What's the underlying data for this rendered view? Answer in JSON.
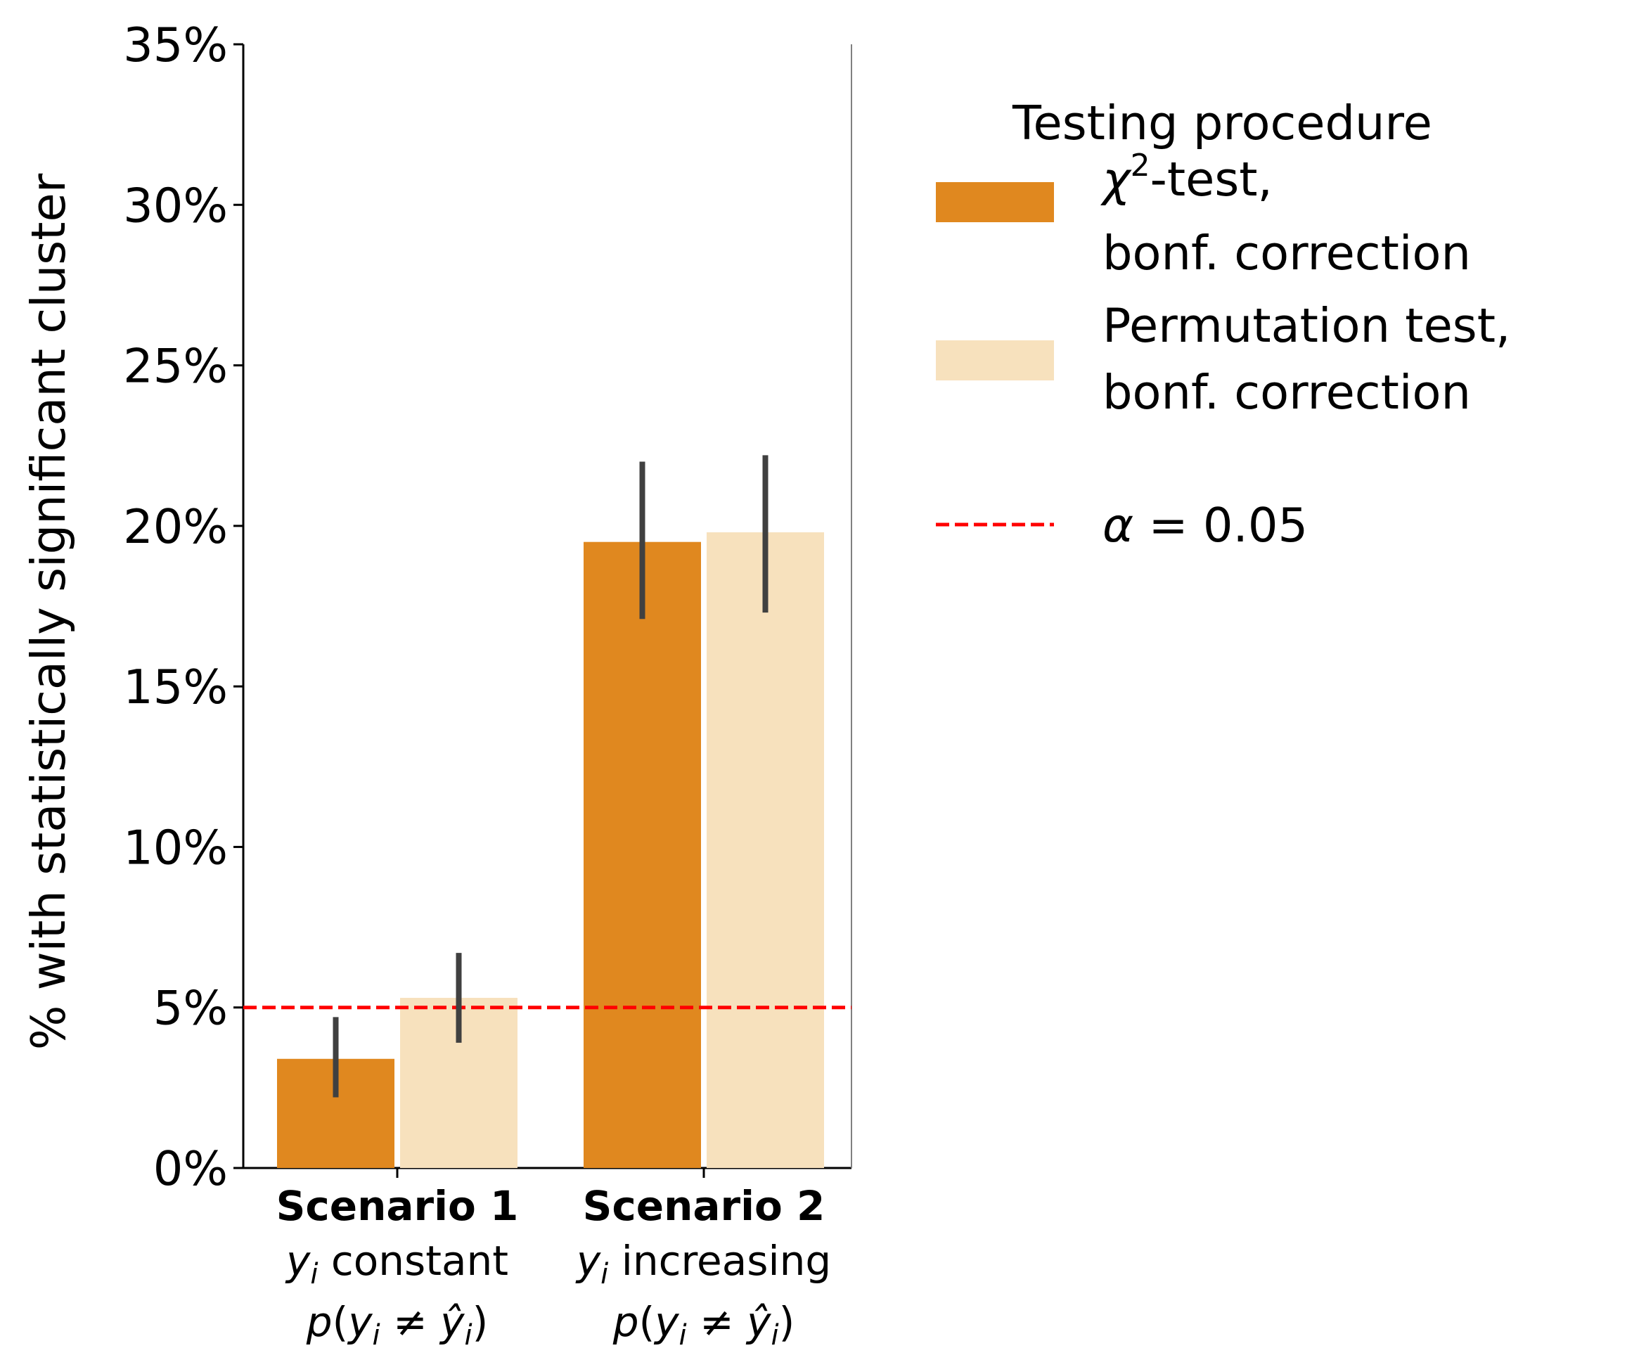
{
  "chart_data": {
    "type": "bar",
    "categories": [
      {
        "title": "Scenario 1",
        "line2": [
          "y",
          "i",
          " constant"
        ],
        "line3": "p(y_i ≠ ŷ_i)"
      },
      {
        "title": "Scenario 2",
        "line2": [
          "y",
          "i",
          " increasing"
        ],
        "line3": "p(y_i ≠ ŷ_i)"
      }
    ],
    "series": [
      {
        "name_parts": [
          "χ",
          "2",
          "-test,"
        ],
        "name_line2": "bonf. correction",
        "color": "#e0881f",
        "values": [
          3.4,
          19.5
        ],
        "err_low": [
          2.2,
          17.1
        ],
        "err_high": [
          4.7,
          22.0
        ]
      },
      {
        "name_parts": [
          "Permutation test,"
        ],
        "name_line2": "bonf. correction",
        "color": "#f7e1bd",
        "values": [
          5.3,
          19.8
        ],
        "err_low": [
          3.9,
          17.3
        ],
        "err_high": [
          6.7,
          22.2
        ]
      }
    ],
    "reference_line": {
      "value": 5,
      "label_parts": [
        "α",
        " = 0.05"
      ],
      "color": "#ff0000",
      "style": "dashed"
    },
    "legend_title": "Testing procedure",
    "legend_placement": "right",
    "ylabel": "% with statistically significant cluster",
    "xlabel": "",
    "ylim": [
      0,
      35
    ],
    "yticks": [
      0,
      5,
      10,
      15,
      20,
      25,
      30,
      35
    ],
    "ytick_labels": [
      "0%",
      "5%",
      "10%",
      "15%",
      "20%",
      "25%",
      "30%",
      "35%"
    ],
    "errorbar_color": "#404040",
    "grid": false
  }
}
